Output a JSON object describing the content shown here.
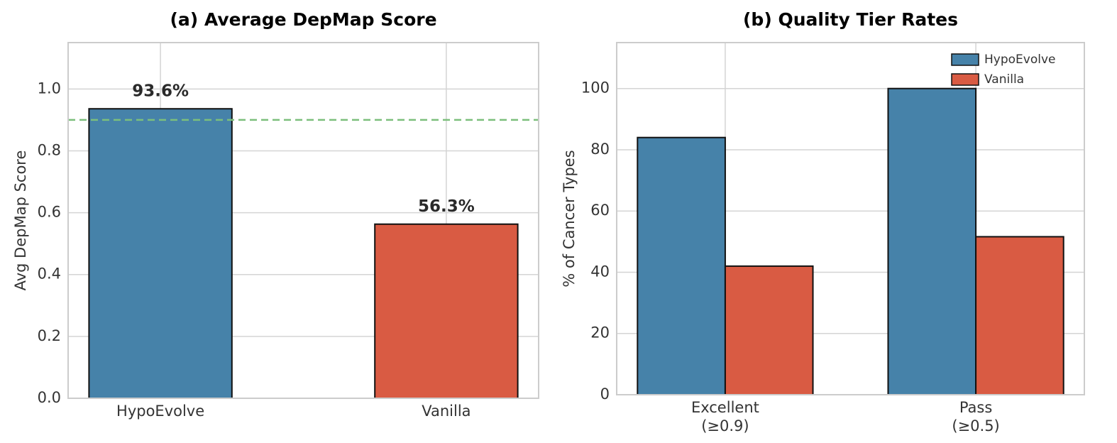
{
  "chart_data": [
    {
      "type": "bar",
      "title": "(a) Average DepMap Score",
      "ylabel": "Avg DepMap Score",
      "categories": [
        "HypoEvolve",
        "Vanilla"
      ],
      "values": [
        0.936,
        0.563
      ],
      "value_labels": [
        "93.6%",
        "56.3%"
      ],
      "colors": [
        "#4682a9",
        "#d95b43"
      ],
      "ylim": [
        0,
        1.15
      ],
      "yticks": [
        {
          "value": 0,
          "label": "0.0"
        },
        0.2,
        0.4,
        0.6,
        0.8,
        {
          "value": 1,
          "label": "1.0"
        }
      ],
      "hline": {
        "value": 0.9,
        "color": "#7cbf7c"
      },
      "grid": true
    },
    {
      "type": "grouped-bar",
      "title": "(b) Quality Tier Rates",
      "ylabel": "% of Cancer Types",
      "categories": [
        [
          "Excellent",
          "(≥0.9)"
        ],
        [
          "Pass",
          "(≥0.5)"
        ]
      ],
      "series": [
        {
          "name": "HypoEvolve",
          "color": "#4682a9",
          "values": [
            84,
            100
          ]
        },
        {
          "name": "Vanilla",
          "color": "#d95b43",
          "values": [
            42,
            51.6
          ]
        }
      ],
      "ylim": [
        0,
        115
      ],
      "yticks": [
        0,
        20,
        40,
        60,
        80,
        100
      ],
      "legend": "upper-right",
      "grid": true
    }
  ]
}
